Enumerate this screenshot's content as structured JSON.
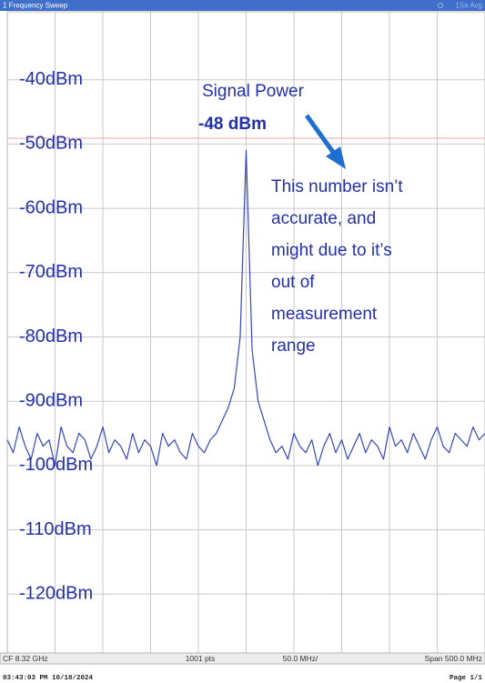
{
  "chart_data": {
    "type": "line",
    "header": {
      "title": "1 Frequency Sweep",
      "status": "1Sa Avg"
    },
    "footer_bar": {
      "center_freq": "CF 8.32 GHz",
      "points": "1001 pts",
      "scale": "50.0 MHz/",
      "span": "Span 500.0 MHz"
    },
    "page_footer": {
      "timestamp": "03:43:03 PM  10/18/2024",
      "page": "Page 1/1"
    },
    "annotation": {
      "title": "Signal Power",
      "value_label": "-48 dBm",
      "note_lines": [
        "This number isn’t",
        "accurate, and",
        "might due to it’s",
        "out of",
        "measurement",
        "range"
      ]
    },
    "ylim": [
      -130,
      -30
    ],
    "yticks": [
      {
        "value": -40,
        "label": "-40dBm"
      },
      {
        "value": -50,
        "label": "-50dBm"
      },
      {
        "value": -60,
        "label": "-60dBm"
      },
      {
        "value": -70,
        "label": "-70dBm"
      },
      {
        "value": -80,
        "label": "-80dBm"
      },
      {
        "value": -90,
        "label": "-90dBm"
      },
      {
        "value": -100,
        "label": "-100dBm"
      },
      {
        "value": -110,
        "label": "-110dBm"
      },
      {
        "value": -120,
        "label": "-120dBm"
      }
    ],
    "grid": true,
    "color": "#3646c0",
    "values": [
      -96,
      -98,
      -94,
      -97,
      -99,
      -95,
      -97,
      -96,
      -100,
      -94,
      -97,
      -98,
      -95,
      -96,
      -99,
      -97,
      -94,
      -98,
      -96,
      -97,
      -99,
      -95,
      -98,
      -96,
      -97,
      -100,
      -95,
      -97,
      -96,
      -98,
      -99,
      -95,
      -97,
      -98,
      -96,
      -95,
      -93,
      -91,
      -88,
      -80,
      -51,
      -82,
      -90,
      -93,
      -96,
      -98,
      -97,
      -99,
      -95,
      -97,
      -98,
      -96,
      -100,
      -97,
      -95,
      -98,
      -96,
      -99,
      -97,
      -95,
      -98,
      -96,
      -97,
      -99,
      -94,
      -97,
      -96,
      -98,
      -95,
      -97,
      -99,
      -96,
      -94,
      -97,
      -98,
      -95,
      -96,
      -97,
      -94,
      -96,
      -95
    ]
  }
}
